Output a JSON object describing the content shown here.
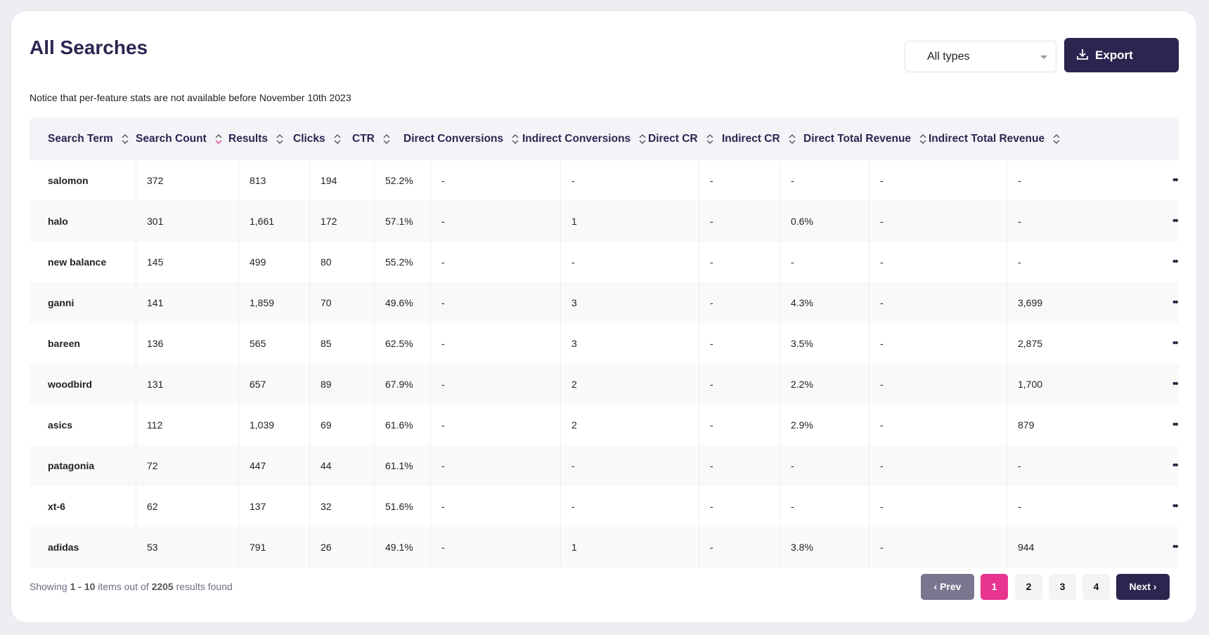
{
  "header": {
    "title": "All Searches",
    "filter": "All types",
    "export": "Export"
  },
  "notice": "Notice that per-feature stats are not available before November 10th 2023",
  "table": {
    "columns": [
      "Search Term",
      "Search Count",
      "Results",
      "Clicks",
      "CTR",
      "Direct Conversions",
      "Indirect Conversions",
      "Direct CR",
      "Indirect CR",
      "Direct Total Revenue",
      "Indirect Total Revenue"
    ],
    "rows": [
      [
        "salomon",
        "372",
        "813",
        "194",
        "52.2%",
        "-",
        "-",
        "-",
        "-",
        "-",
        "-"
      ],
      [
        "halo",
        "301",
        "1,661",
        "172",
        "57.1%",
        "-",
        "1",
        "-",
        "0.6%",
        "-",
        "-"
      ],
      [
        "new balance",
        "145",
        "499",
        "80",
        "55.2%",
        "-",
        "-",
        "-",
        "-",
        "-",
        "-"
      ],
      [
        "ganni",
        "141",
        "1,859",
        "70",
        "49.6%",
        "-",
        "3",
        "-",
        "4.3%",
        "-",
        "3,699"
      ],
      [
        "bareen",
        "136",
        "565",
        "85",
        "62.5%",
        "-",
        "3",
        "-",
        "3.5%",
        "-",
        "2,875"
      ],
      [
        "woodbird",
        "131",
        "657",
        "89",
        "67.9%",
        "-",
        "2",
        "-",
        "2.2%",
        "-",
        "1,700"
      ],
      [
        "asics",
        "112",
        "1,039",
        "69",
        "61.6%",
        "-",
        "2",
        "-",
        "2.9%",
        "-",
        "879"
      ],
      [
        "patagonia",
        "72",
        "447",
        "44",
        "61.1%",
        "-",
        "-",
        "-",
        "-",
        "-",
        "-"
      ],
      [
        "xt-6",
        "62",
        "137",
        "32",
        "51.6%",
        "-",
        "-",
        "-",
        "-",
        "-",
        "-"
      ],
      [
        "adidas",
        "53",
        "791",
        "26",
        "49.1%",
        "-",
        "1",
        "-",
        "3.8%",
        "-",
        "944"
      ]
    ]
  },
  "footer": {
    "showing": "Showing",
    "range": "1 - 10",
    "items_out_of": "items out of",
    "total": "2205",
    "results_found": "results found"
  },
  "pagination": {
    "prev": "Prev",
    "pages": [
      "1",
      "2",
      "3",
      "4"
    ],
    "next": "Next"
  }
}
